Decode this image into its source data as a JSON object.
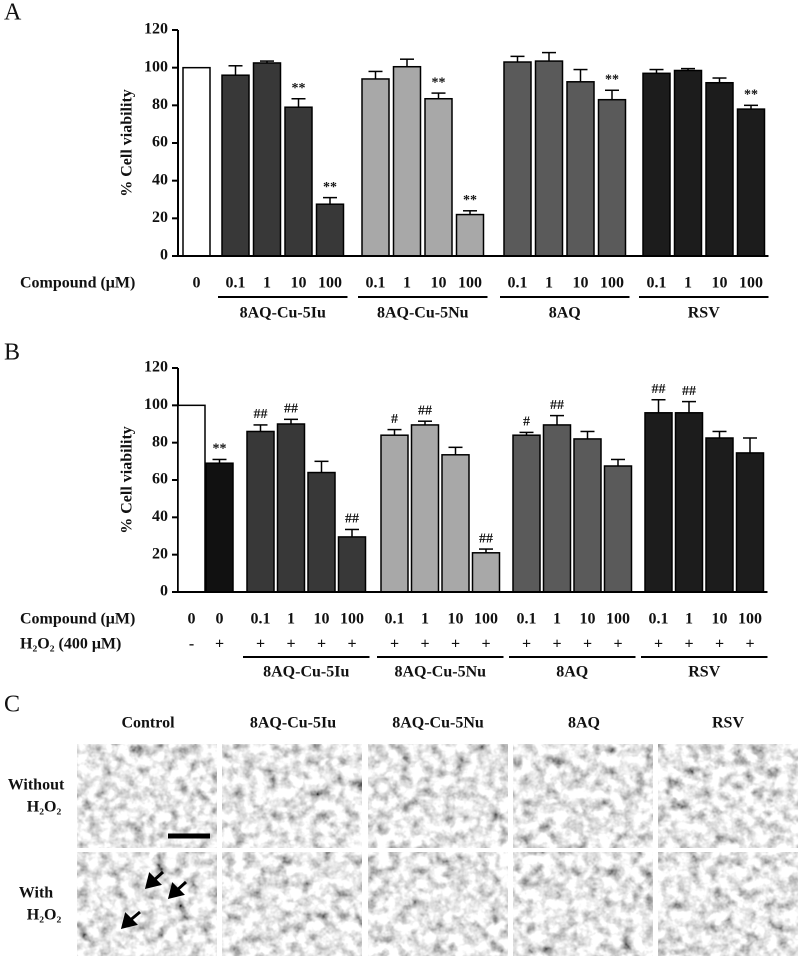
{
  "chart_data": [
    {
      "type": "bar",
      "label": "A",
      "ylabel": "% Cell viability",
      "x_label": "Compound (μM)",
      "ylim": [
        0,
        120
      ],
      "yticks": [
        0,
        20,
        40,
        60,
        80,
        100,
        120
      ],
      "series": [
        {
          "categories": [
            "0"
          ],
          "colors": [
            "#ffffff"
          ],
          "values": [
            100
          ],
          "errors": [
            null
          ],
          "annotations": [
            null
          ]
        },
        {
          "name": "8AQ-Cu-5Iu",
          "color": "#383838",
          "categories": [
            "0.1",
            "1",
            "10",
            "100"
          ],
          "values": [
            96,
            102.5,
            79,
            27.5
          ],
          "errors": [
            5,
            1,
            4.5,
            3.5
          ],
          "annotations": [
            null,
            null,
            "**",
            "**"
          ]
        },
        {
          "name": "8AQ-Cu-5Nu",
          "color": "#a8a8a8",
          "categories": [
            "0.1",
            "1",
            "10",
            "100"
          ],
          "values": [
            94,
            100.5,
            83.5,
            22
          ],
          "errors": [
            4,
            4,
            3,
            2
          ],
          "annotations": [
            null,
            null,
            "**",
            "**"
          ]
        },
        {
          "name": "8AQ",
          "color": "#5a5a5a",
          "categories": [
            "0.1",
            "1",
            "10",
            "100"
          ],
          "values": [
            103,
            103.5,
            92.5,
            83
          ],
          "errors": [
            3,
            4.5,
            6.5,
            5
          ],
          "annotations": [
            null,
            null,
            null,
            "**"
          ]
        },
        {
          "name": "RSV",
          "color": "#1c1c1c",
          "categories": [
            "0.1",
            "1",
            "10",
            "100"
          ],
          "values": [
            97,
            98.5,
            92,
            78
          ],
          "errors": [
            2,
            1,
            2.5,
            2
          ],
          "annotations": [
            null,
            null,
            null,
            "**"
          ]
        }
      ]
    },
    {
      "type": "bar",
      "label": "B",
      "ylabel": "% Cell viability",
      "x_label": "Compound (μM)",
      "h2o2_label": "H₂O₂ (400 μM)",
      "ylim": [
        0,
        120
      ],
      "yticks": [
        0,
        20,
        40,
        60,
        80,
        100,
        120
      ],
      "series": [
        {
          "categories": [
            "0",
            "0"
          ],
          "colors": [
            "#ffffff",
            "#111111"
          ],
          "values": [
            100,
            69
          ],
          "errors": [
            null,
            2
          ],
          "annotations": [
            null,
            "**"
          ],
          "h2o2": [
            "-",
            "+"
          ]
        },
        {
          "name": "8AQ-Cu-5Iu",
          "color": "#383838",
          "categories": [
            "0.1",
            "1",
            "10",
            "100"
          ],
          "values": [
            86,
            90,
            64,
            29.5
          ],
          "errors": [
            3.5,
            2.5,
            6,
            4
          ],
          "annotations": [
            "##",
            "##",
            null,
            "##"
          ],
          "h2o2": [
            "+",
            "+",
            "+",
            "+"
          ]
        },
        {
          "name": "8AQ-Cu-5Nu",
          "color": "#a8a8a8",
          "categories": [
            "0.1",
            "1",
            "10",
            "100"
          ],
          "values": [
            84,
            89.5,
            73.5,
            21
          ],
          "errors": [
            3,
            2,
            4,
            2
          ],
          "annotations": [
            "#",
            "##",
            null,
            "##"
          ],
          "h2o2": [
            "+",
            "+",
            "+",
            "+"
          ]
        },
        {
          "name": "8AQ",
          "color": "#5a5a5a",
          "categories": [
            "0.1",
            "1",
            "10",
            "100"
          ],
          "values": [
            84,
            89.5,
            82,
            67.5
          ],
          "errors": [
            1.5,
            5,
            4,
            3.5
          ],
          "annotations": [
            "#",
            "##",
            null,
            null
          ],
          "h2o2": [
            "+",
            "+",
            "+",
            "+"
          ]
        },
        {
          "name": "RSV",
          "color": "#1c1c1c",
          "categories": [
            "0.1",
            "1",
            "10",
            "100"
          ],
          "values": [
            96,
            96,
            82.5,
            74.5
          ],
          "errors": [
            7,
            6,
            3.5,
            8
          ],
          "annotations": [
            "##",
            "##",
            null,
            null
          ],
          "h2o2": [
            "+",
            "+",
            "+",
            "+"
          ]
        }
      ]
    }
  ],
  "panel_c": {
    "label": "C",
    "columns": [
      "Control",
      "8AQ-Cu-5Iu",
      "8AQ-Cu-5Nu",
      "8AQ",
      "RSV"
    ],
    "rows": [
      {
        "lines": [
          "Without",
          "H₂O₂"
        ]
      },
      {
        "lines": [
          "With",
          "H₂O₂"
        ]
      }
    ]
  }
}
